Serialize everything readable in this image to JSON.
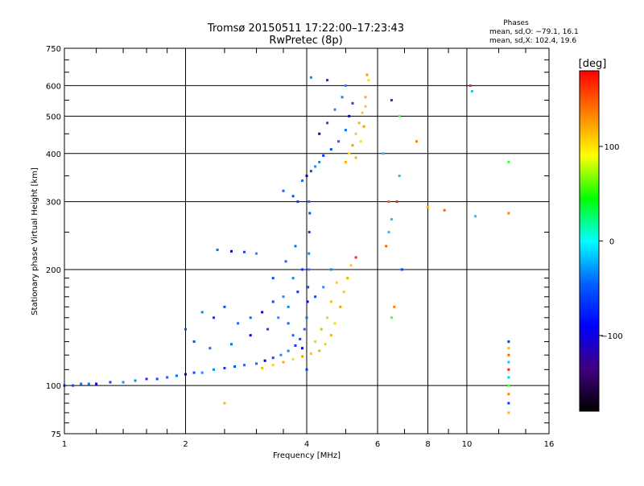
{
  "chart_data": {
    "type": "scatter",
    "title": "Tromsø 20150511 17:22:00–17:23:43",
    "subtitle": "RwPretec (8p)",
    "xlabel": "Frequency [MHz]",
    "ylabel": "Stationary phase Virtual Height [km]",
    "xscale": "log",
    "yscale": "log",
    "xlim": [
      1,
      16
    ],
    "ylim": [
      75,
      750
    ],
    "x_ticks": [
      1,
      2,
      4,
      6,
      8,
      10,
      16
    ],
    "x_tick_labels": [
      "1",
      "2",
      "4",
      "6",
      "8",
      "10",
      "16"
    ],
    "y_ticks": [
      75,
      100,
      200,
      300,
      400,
      500,
      600,
      750
    ],
    "y_tick_labels": [
      "75",
      "100",
      "200",
      "300",
      "400",
      "500",
      "600",
      "750"
    ],
    "grid": true,
    "phases_header": "Phases",
    "phases_stats": [
      "mean, sd,O: −79.1, 16.1",
      "mean, sd,X: 102.4, 19.6"
    ],
    "colorbar": {
      "label": "[deg]",
      "range": [
        -180,
        180
      ],
      "ticks": [
        100,
        0,
        -100
      ],
      "tick_labels": [
        "100",
        "0",
        "−100"
      ],
      "colors": [
        "#ff0000",
        "#ff8000",
        "#ffff00",
        "#00ff00",
        "#00ffff",
        "#0060ff",
        "#0000ff",
        "#400080",
        "#000000"
      ]
    },
    "series": [
      {
        "points": [
          [
            1.0,
            100
          ],
          [
            1.05,
            100
          ],
          [
            1.1,
            101
          ],
          [
            1.15,
            101
          ],
          [
            1.2,
            101
          ],
          [
            1.3,
            102
          ],
          [
            1.4,
            102
          ],
          [
            1.5,
            103
          ],
          [
            1.6,
            104
          ],
          [
            1.7,
            104
          ],
          [
            1.8,
            105
          ],
          [
            1.9,
            106
          ],
          [
            2.0,
            107
          ],
          [
            2.1,
            108
          ],
          [
            2.2,
            108
          ],
          [
            2.35,
            110
          ],
          [
            2.5,
            111
          ],
          [
            2.65,
            112
          ],
          [
            2.8,
            113
          ],
          [
            3.0,
            114
          ],
          [
            3.15,
            116
          ],
          [
            3.3,
            118
          ],
          [
            3.45,
            120
          ],
          [
            3.6,
            123
          ],
          [
            3.75,
            127
          ],
          [
            3.85,
            132
          ],
          [
            3.95,
            140
          ],
          [
            4.0,
            150
          ],
          [
            4.02,
            165
          ],
          [
            4.03,
            180
          ],
          [
            4.05,
            200
          ],
          [
            4.05,
            220
          ],
          [
            4.06,
            250
          ],
          [
            4.07,
            280
          ],
          [
            4.05,
            300
          ],
          [
            3.9,
            340
          ],
          [
            4.0,
            350
          ],
          [
            4.1,
            360
          ],
          [
            4.2,
            370
          ],
          [
            4.3,
            380
          ],
          [
            4.4,
            395
          ],
          [
            4.6,
            410
          ],
          [
            4.8,
            430
          ],
          [
            5.0,
            460
          ],
          [
            5.1,
            500
          ],
          [
            5.2,
            540
          ],
          [
            5.0,
            600
          ],
          [
            4.1,
            630
          ],
          [
            4.5,
            620
          ],
          [
            3.7,
            310
          ],
          [
            3.5,
            320
          ],
          [
            2.4,
            225
          ],
          [
            2.6,
            223
          ],
          [
            2.8,
            222
          ],
          [
            3.0,
            220
          ],
          [
            2.2,
            155
          ],
          [
            2.35,
            150
          ],
          [
            2.5,
            160
          ],
          [
            2.7,
            145
          ],
          [
            2.9,
            150
          ],
          [
            3.1,
            155
          ],
          [
            3.3,
            165
          ],
          [
            3.5,
            170
          ],
          [
            3.7,
            190
          ],
          [
            3.9,
            200
          ],
          [
            2.1,
            130
          ],
          [
            2.3,
            125
          ],
          [
            2.6,
            128
          ],
          [
            2.9,
            135
          ],
          [
            3.2,
            140
          ],
          [
            3.4,
            150
          ],
          [
            3.6,
            160
          ],
          [
            3.8,
            175
          ],
          [
            2.0,
            140
          ],
          [
            3.6,
            145
          ],
          [
            3.7,
            135
          ],
          [
            3.9,
            125
          ],
          [
            4.2,
            170
          ],
          [
            4.4,
            180
          ],
          [
            4.6,
            200
          ],
          [
            4.0,
            110
          ],
          [
            3.3,
            190
          ],
          [
            3.55,
            210
          ],
          [
            3.75,
            230
          ],
          [
            4.3,
            450
          ],
          [
            4.5,
            480
          ],
          [
            4.7,
            520
          ],
          [
            4.9,
            560
          ],
          [
            3.8,
            300
          ]
        ]
      },
      {
        "points": [
          [
            3.1,
            111
          ],
          [
            3.3,
            113
          ],
          [
            3.5,
            115
          ],
          [
            3.7,
            117
          ],
          [
            3.9,
            119
          ],
          [
            4.1,
            121
          ],
          [
            4.3,
            123
          ],
          [
            4.45,
            128
          ],
          [
            4.6,
            135
          ],
          [
            4.7,
            145
          ],
          [
            4.85,
            160
          ],
          [
            4.95,
            175
          ],
          [
            5.05,
            190
          ],
          [
            5.15,
            205
          ],
          [
            5.0,
            380
          ],
          [
            5.1,
            400
          ],
          [
            5.2,
            420
          ],
          [
            5.3,
            450
          ],
          [
            5.4,
            480
          ],
          [
            5.5,
            510
          ],
          [
            5.6,
            560
          ],
          [
            5.7,
            620
          ],
          [
            5.65,
            640
          ],
          [
            4.5,
            150
          ],
          [
            4.6,
            165
          ],
          [
            4.75,
            185
          ],
          [
            5.3,
            390
          ],
          [
            5.45,
            430
          ],
          [
            5.55,
            470
          ],
          [
            5.6,
            530
          ],
          [
            4.35,
            140
          ],
          [
            4.2,
            130
          ]
        ]
      },
      {
        "points": [
          [
            5.3,
            215
          ],
          [
            6.2,
            400
          ],
          [
            6.8,
            500
          ],
          [
            7.5,
            430
          ],
          [
            6.5,
            550
          ],
          [
            8.0,
            290
          ],
          [
            8.8,
            285
          ],
          [
            10.5,
            275
          ],
          [
            10.2,
            600
          ],
          [
            10.3,
            580
          ],
          [
            12.7,
            380
          ],
          [
            12.7,
            280
          ],
          [
            12.7,
            130
          ],
          [
            12.7,
            125
          ],
          [
            12.7,
            120
          ],
          [
            12.7,
            115
          ],
          [
            12.7,
            110
          ],
          [
            12.7,
            105
          ],
          [
            12.7,
            100
          ],
          [
            12.7,
            95
          ],
          [
            12.7,
            90
          ],
          [
            12.7,
            85
          ],
          [
            6.3,
            230
          ],
          [
            6.5,
            270
          ],
          [
            6.7,
            300
          ],
          [
            6.8,
            350
          ],
          [
            6.5,
            150
          ],
          [
            6.6,
            160
          ],
          [
            6.9,
            200
          ],
          [
            2.5,
            90
          ],
          [
            6.4,
            300
          ],
          [
            6.4,
            250
          ]
        ]
      }
    ]
  }
}
